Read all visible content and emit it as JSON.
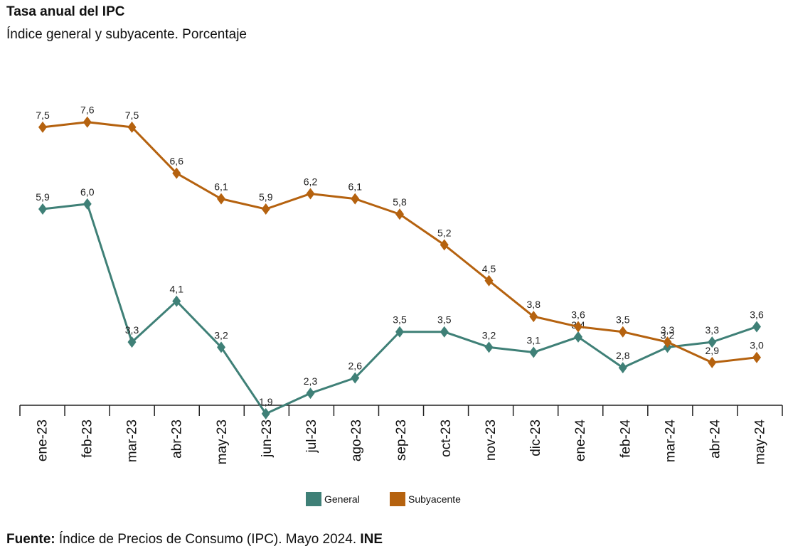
{
  "chart_data": {
    "type": "line",
    "title": "Tasa anual del IPC",
    "subtitle": "Índice general y subyacente. Porcentaje",
    "categories": [
      "ene-23",
      "feb-23",
      "mar-23",
      "abr-23",
      "may-23",
      "jun-23",
      "jul-23",
      "ago-23",
      "sep-23",
      "oct-23",
      "nov-23",
      "dic-23",
      "ene-24",
      "feb-24",
      "mar-24",
      "abr-24",
      "may-24"
    ],
    "series": [
      {
        "name": "General",
        "color": "#3f8077",
        "values": [
          5.9,
          6.0,
          3.3,
          4.1,
          3.2,
          1.9,
          2.3,
          2.6,
          3.5,
          3.5,
          3.2,
          3.1,
          3.4,
          2.8,
          3.2,
          3.3,
          3.6
        ],
        "labels": [
          "5,9",
          "6,0",
          "3,3",
          "4,1",
          "3,2",
          "1,9",
          "2,3",
          "2,6",
          "3,5",
          "3,5",
          "3,2",
          "3,1",
          "3,4",
          "2,8",
          "3,2",
          "3,3",
          "3,6"
        ]
      },
      {
        "name": "Subyacente",
        "color": "#b5620f",
        "values": [
          7.5,
          7.6,
          7.5,
          6.6,
          6.1,
          5.9,
          6.2,
          6.1,
          5.8,
          5.2,
          4.5,
          3.8,
          3.6,
          3.5,
          3.3,
          2.9,
          3.0
        ],
        "labels": [
          "7,5",
          "7,6",
          "7,5",
          "6,6",
          "6,1",
          "5,9",
          "6,2",
          "6,1",
          "5,8",
          "5,2",
          "4,5",
          "3,8",
          "3,6",
          "3,5",
          "3,3",
          "2,9",
          "3,0"
        ]
      }
    ],
    "xlabel": "",
    "ylabel": "",
    "ylim": [
      0,
      8
    ],
    "grid": false,
    "legend": "bottom-center"
  },
  "source": {
    "label": "Fuente:",
    "text": "Índice de Precios de Consumo (IPC).  Mayo 2024.",
    "org": "INE"
  }
}
